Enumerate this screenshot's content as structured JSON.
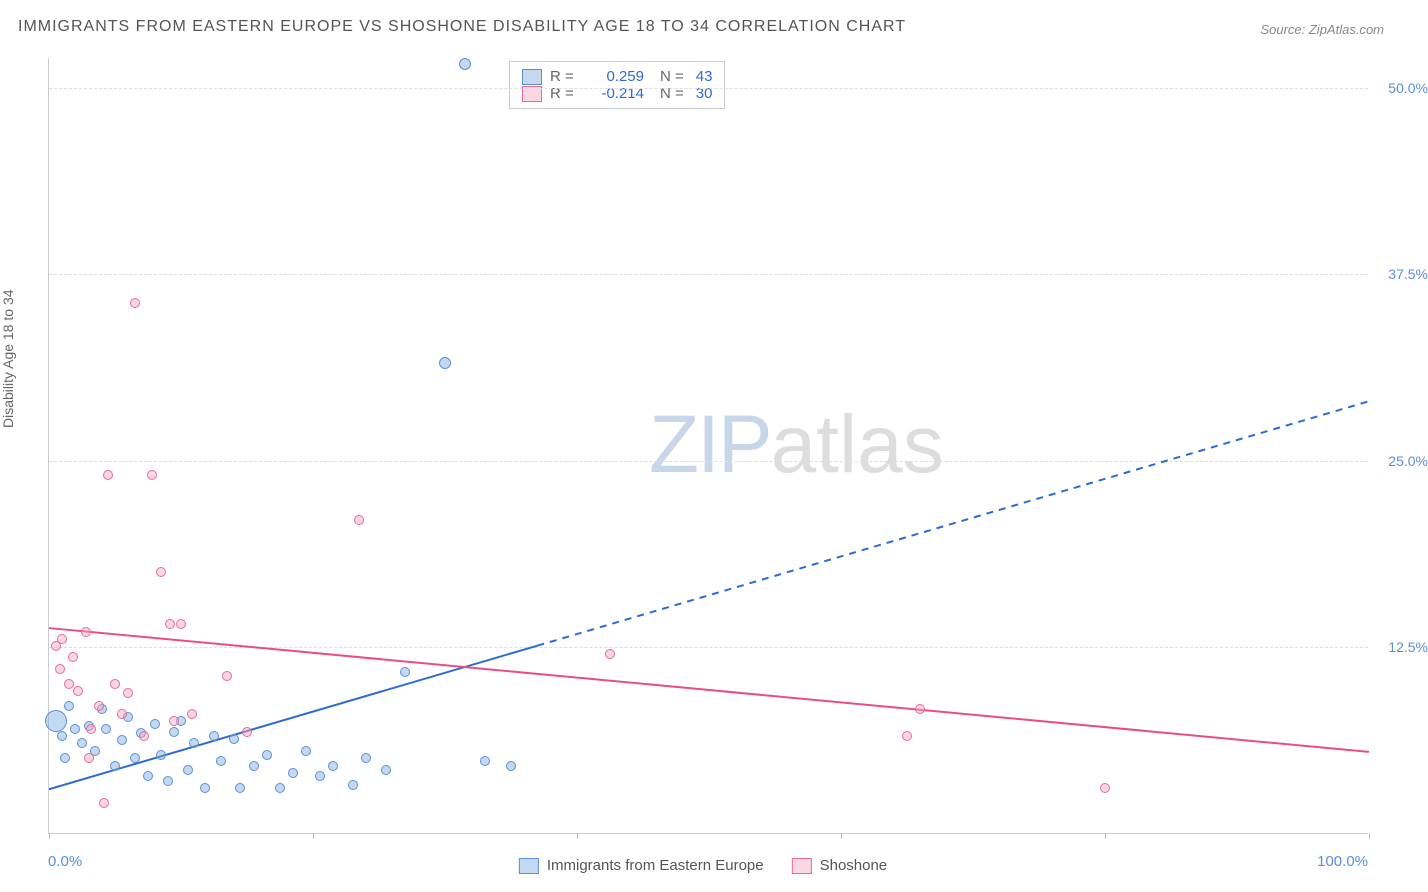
{
  "title": "IMMIGRANTS FROM EASTERN EUROPE VS SHOSHONE DISABILITY AGE 18 TO 34 CORRELATION CHART",
  "source": "Source: ZipAtlas.com",
  "ylabel": "Disability Age 18 to 34",
  "watermark": {
    "zip": "ZIP",
    "atlas": "atlas"
  },
  "chart": {
    "type": "scatter",
    "xlim": [
      0,
      100
    ],
    "ylim": [
      0,
      52
    ],
    "xticks": [
      0,
      20,
      40,
      60,
      80,
      100
    ],
    "yticks": [
      12.5,
      25.0,
      37.5,
      50.0
    ],
    "ytick_labels": [
      "12.5%",
      "25.0%",
      "37.5%",
      "50.0%"
    ],
    "xlabel_min": "0.0%",
    "xlabel_max": "100.0%",
    "background_color": "#ffffff",
    "grid_color": "#dddddd",
    "axis_color": "#cccccc",
    "tick_label_color": "#5b8fd6"
  },
  "series": [
    {
      "name": "Immigrants from Eastern Europe",
      "color_fill": "rgba(122,170,224,0.45)",
      "color_stroke": "#5b8fd6",
      "r": "0.259",
      "n": "43",
      "trend": {
        "x1": 0,
        "y1": 3.0,
        "x2": 100,
        "y2": 29.0,
        "solid_until_x": 37,
        "color": "#2e6bd0",
        "width": 2
      },
      "points": [
        {
          "x": 0.5,
          "y": 7.5,
          "s": 22
        },
        {
          "x": 1.0,
          "y": 6.5,
          "s": 10
        },
        {
          "x": 1.2,
          "y": 5.0,
          "s": 10
        },
        {
          "x": 1.5,
          "y": 8.5,
          "s": 10
        },
        {
          "x": 2.0,
          "y": 7.0,
          "s": 10
        },
        {
          "x": 2.5,
          "y": 6.0,
          "s": 10
        },
        {
          "x": 3.0,
          "y": 7.2,
          "s": 10
        },
        {
          "x": 3.5,
          "y": 5.5,
          "s": 10
        },
        {
          "x": 4.0,
          "y": 8.3,
          "s": 10
        },
        {
          "x": 4.3,
          "y": 7.0,
          "s": 10
        },
        {
          "x": 5.0,
          "y": 4.5,
          "s": 10
        },
        {
          "x": 5.5,
          "y": 6.2,
          "s": 10
        },
        {
          "x": 6.0,
          "y": 7.8,
          "s": 10
        },
        {
          "x": 6.5,
          "y": 5.0,
          "s": 10
        },
        {
          "x": 7.0,
          "y": 6.7,
          "s": 10
        },
        {
          "x": 7.5,
          "y": 3.8,
          "s": 10
        },
        {
          "x": 8.0,
          "y": 7.3,
          "s": 10
        },
        {
          "x": 8.5,
          "y": 5.2,
          "s": 10
        },
        {
          "x": 9.0,
          "y": 3.5,
          "s": 10
        },
        {
          "x": 9.5,
          "y": 6.8,
          "s": 10
        },
        {
          "x": 10.0,
          "y": 7.5,
          "s": 10
        },
        {
          "x": 10.5,
          "y": 4.2,
          "s": 10
        },
        {
          "x": 11.0,
          "y": 6.0,
          "s": 10
        },
        {
          "x": 11.8,
          "y": 3.0,
          "s": 10
        },
        {
          "x": 12.5,
          "y": 6.5,
          "s": 10
        },
        {
          "x": 13.0,
          "y": 4.8,
          "s": 10
        },
        {
          "x": 14.0,
          "y": 6.3,
          "s": 10
        },
        {
          "x": 14.5,
          "y": 3.0,
          "s": 10
        },
        {
          "x": 15.5,
          "y": 4.5,
          "s": 10
        },
        {
          "x": 16.5,
          "y": 5.2,
          "s": 10
        },
        {
          "x": 17.5,
          "y": 3.0,
          "s": 10
        },
        {
          "x": 18.5,
          "y": 4.0,
          "s": 10
        },
        {
          "x": 19.5,
          "y": 5.5,
          "s": 10
        },
        {
          "x": 20.5,
          "y": 3.8,
          "s": 10
        },
        {
          "x": 21.5,
          "y": 4.5,
          "s": 10
        },
        {
          "x": 23.0,
          "y": 3.2,
          "s": 10
        },
        {
          "x": 24.0,
          "y": 5.0,
          "s": 10
        },
        {
          "x": 25.5,
          "y": 4.2,
          "s": 10
        },
        {
          "x": 27.0,
          "y": 10.8,
          "s": 10
        },
        {
          "x": 30.0,
          "y": 31.5,
          "s": 12
        },
        {
          "x": 31.5,
          "y": 51.5,
          "s": 12
        },
        {
          "x": 33.0,
          "y": 4.8,
          "s": 10
        },
        {
          "x": 35.0,
          "y": 4.5,
          "s": 10
        }
      ]
    },
    {
      "name": "Shoshone",
      "color_fill": "rgba(244,166,190,0.45)",
      "color_stroke": "#e76a9a",
      "r": "-0.214",
      "n": "30",
      "trend": {
        "x1": 0,
        "y1": 13.8,
        "x2": 100,
        "y2": 5.5,
        "solid_until_x": 100,
        "color": "#e84d86",
        "width": 2
      },
      "points": [
        {
          "x": 0.5,
          "y": 12.5,
          "s": 10
        },
        {
          "x": 0.8,
          "y": 11.0,
          "s": 10
        },
        {
          "x": 1.0,
          "y": 13.0,
          "s": 10
        },
        {
          "x": 1.5,
          "y": 10.0,
          "s": 10
        },
        {
          "x": 1.8,
          "y": 11.8,
          "s": 10
        },
        {
          "x": 2.2,
          "y": 9.5,
          "s": 10
        },
        {
          "x": 2.8,
          "y": 13.5,
          "s": 10
        },
        {
          "x": 3.2,
          "y": 7.0,
          "s": 10
        },
        {
          "x": 3.8,
          "y": 8.5,
          "s": 10
        },
        {
          "x": 4.2,
          "y": 2.0,
          "s": 10
        },
        {
          "x": 4.5,
          "y": 24.0,
          "s": 10
        },
        {
          "x": 5.0,
          "y": 10.0,
          "s": 10
        },
        {
          "x": 5.5,
          "y": 8.0,
          "s": 10
        },
        {
          "x": 6.0,
          "y": 9.4,
          "s": 10
        },
        {
          "x": 6.5,
          "y": 35.5,
          "s": 10
        },
        {
          "x": 7.2,
          "y": 6.5,
          "s": 10
        },
        {
          "x": 7.8,
          "y": 24.0,
          "s": 10
        },
        {
          "x": 8.5,
          "y": 17.5,
          "s": 10
        },
        {
          "x": 9.2,
          "y": 14.0,
          "s": 10
        },
        {
          "x": 9.5,
          "y": 7.5,
          "s": 10
        },
        {
          "x": 10.0,
          "y": 14.0,
          "s": 10
        },
        {
          "x": 10.8,
          "y": 8.0,
          "s": 10
        },
        {
          "x": 13.5,
          "y": 10.5,
          "s": 10
        },
        {
          "x": 15.0,
          "y": 6.8,
          "s": 10
        },
        {
          "x": 23.5,
          "y": 21.0,
          "s": 10
        },
        {
          "x": 42.5,
          "y": 12.0,
          "s": 10
        },
        {
          "x": 65.0,
          "y": 6.5,
          "s": 10
        },
        {
          "x": 66.0,
          "y": 8.3,
          "s": 10
        },
        {
          "x": 80.0,
          "y": 3.0,
          "s": 10
        },
        {
          "x": 3.0,
          "y": 5.0,
          "s": 10
        }
      ]
    }
  ],
  "legend_top": {
    "rows": [
      {
        "fill": "rgba(122,170,224,0.45)",
        "stroke": "#5b8fd6",
        "r": "0.259",
        "n": "43",
        "valcolor": "#2e6bd0"
      },
      {
        "fill": "rgba(244,166,190,0.45)",
        "stroke": "#e76a9a",
        "r": "-0.214",
        "n": "30",
        "valcolor": "#2e6bd0"
      }
    ],
    "r_label": "R =",
    "n_label": "N ="
  },
  "legend_bottom": [
    {
      "fill": "rgba(122,170,224,0.45)",
      "stroke": "#5b8fd6",
      "label": "Immigrants from Eastern Europe"
    },
    {
      "fill": "rgba(244,166,190,0.45)",
      "stroke": "#e76a9a",
      "label": "Shoshone"
    }
  ]
}
